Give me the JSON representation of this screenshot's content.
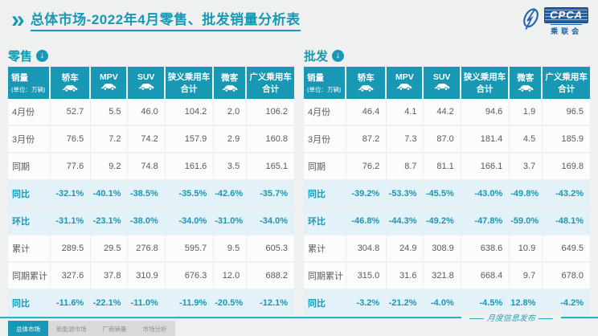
{
  "page": {
    "chevron": "»",
    "title": "总体市场-2022年4月零售、批发销量分析表"
  },
  "logo": {
    "acronym": "CPCA",
    "org_cn": "乘联会"
  },
  "table_columns": [
    {
      "label": "销量",
      "unit": "(单位：万辆)"
    },
    {
      "label": "轿车",
      "icon": "car"
    },
    {
      "label": "MPV",
      "icon": "car"
    },
    {
      "label": "SUV",
      "icon": "car"
    },
    {
      "label": "狭义乘用车",
      "label2": "合计"
    },
    {
      "label": "微客",
      "icon": "car"
    },
    {
      "label": "广义乘用车",
      "label2": "合计"
    }
  ],
  "sections": [
    {
      "id": "retail",
      "label": "零售",
      "rows": [
        {
          "label": "4月份",
          "highlight": false,
          "values": [
            "52.7",
            "5.5",
            "46.0",
            "104.2",
            "2.0",
            "106.2"
          ]
        },
        {
          "label": "3月份",
          "highlight": false,
          "values": [
            "76.5",
            "7.2",
            "74.2",
            "157.9",
            "2.9",
            "160.8"
          ]
        },
        {
          "label": "同期",
          "highlight": false,
          "values": [
            "77.6",
            "9.2",
            "74.8",
            "161.6",
            "3.5",
            "165.1"
          ]
        },
        {
          "label": "同比",
          "highlight": true,
          "values": [
            "-32.1%",
            "-40.1%",
            "-38.5%",
            "-35.5%",
            "-42.6%",
            "-35.7%"
          ]
        },
        {
          "label": "环比",
          "highlight": true,
          "values": [
            "-31.1%",
            "-23.1%",
            "-38.0%",
            "-34.0%",
            "-31.0%",
            "-34.0%"
          ]
        },
        {
          "label": "累计",
          "highlight": false,
          "values": [
            "289.5",
            "29.5",
            "276.8",
            "595.7",
            "9.5",
            "605.3"
          ]
        },
        {
          "label": "同期累计",
          "highlight": false,
          "values": [
            "327.6",
            "37.8",
            "310.9",
            "676.3",
            "12.0",
            "688.2"
          ]
        },
        {
          "label": "同比",
          "highlight": true,
          "values": [
            "-11.6%",
            "-22.1%",
            "-11.0%",
            "-11.9%",
            "-20.5%",
            "-12.1%"
          ]
        }
      ]
    },
    {
      "id": "wholesale",
      "label": "批发",
      "rows": [
        {
          "label": "4月份",
          "highlight": false,
          "values": [
            "46.4",
            "4.1",
            "44.2",
            "94.6",
            "1.9",
            "96.5"
          ]
        },
        {
          "label": "3月份",
          "highlight": false,
          "values": [
            "87.2",
            "7.3",
            "87.0",
            "181.4",
            "4.5",
            "185.9"
          ]
        },
        {
          "label": "同期",
          "highlight": false,
          "values": [
            "76.2",
            "8.7",
            "81.1",
            "166.1",
            "3.7",
            "169.8"
          ]
        },
        {
          "label": "同比",
          "highlight": true,
          "values": [
            "-39.2%",
            "-53.3%",
            "-45.5%",
            "-43.0%",
            "-49.8%",
            "-43.2%"
          ]
        },
        {
          "label": "环比",
          "highlight": true,
          "values": [
            "-46.8%",
            "-44.3%",
            "-49.2%",
            "-47.8%",
            "-59.0%",
            "-48.1%"
          ]
        },
        {
          "label": "累计",
          "highlight": false,
          "values": [
            "304.8",
            "24.9",
            "308.9",
            "638.6",
            "10.9",
            "649.5"
          ]
        },
        {
          "label": "同期累计",
          "highlight": false,
          "values": [
            "315.0",
            "31.6",
            "321.8",
            "668.4",
            "9.7",
            "678.0"
          ]
        },
        {
          "label": "同比",
          "highlight": true,
          "values": [
            "-3.2%",
            "-21.2%",
            "-4.0%",
            "-4.5%",
            "12.8%",
            "-4.2%"
          ]
        }
      ]
    }
  ],
  "footer": {
    "tabs": [
      {
        "label": "总体市场",
        "active": true
      },
      {
        "label": "新能源市场",
        "active": false
      },
      {
        "label": "厂商销量",
        "active": false
      },
      {
        "label": "市场分析",
        "active": false
      }
    ],
    "note": "月度信息发布"
  },
  "colors": {
    "teal": "#1898b4",
    "logo_blue": "#1f5cab",
    "pct_row_bg": "#e2f2f8",
    "page_bg": "#eff1f0"
  }
}
